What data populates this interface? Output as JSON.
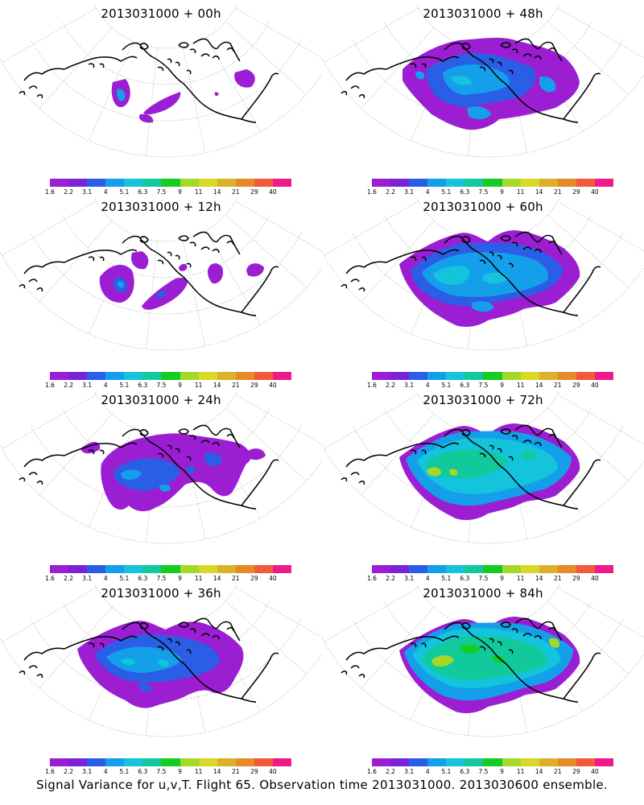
{
  "caption": "Signal Variance for u,v,T. Flight 65. Observation time 2013031000. 2013030600 ensemble.",
  "colorbar": {
    "labels": [
      "1.6",
      "2.2",
      "3.1",
      "4",
      "5.1",
      "6.3",
      "7.5",
      "9",
      "11",
      "14",
      "21",
      "29",
      "40"
    ],
    "colors": [
      "#9b1ed2",
      "#7b22d6",
      "#2b5ee6",
      "#149fea",
      "#14c4dc",
      "#12c99c",
      "#14cc22",
      "#a6d828",
      "#d8d825",
      "#dcb028",
      "#e68a28",
      "#f05a3a",
      "#ee1a8c"
    ]
  },
  "panels": [
    {
      "title": "2013031000 + 00h"
    },
    {
      "title": "2013031000 + 48h"
    },
    {
      "title": "2013031000 + 12h"
    },
    {
      "title": "2013031000 + 60h"
    },
    {
      "title": "2013031000 + 24h"
    },
    {
      "title": "2013031000 + 72h"
    },
    {
      "title": "2013031000 + 36h"
    },
    {
      "title": "2013031000 + 84h"
    }
  ]
}
